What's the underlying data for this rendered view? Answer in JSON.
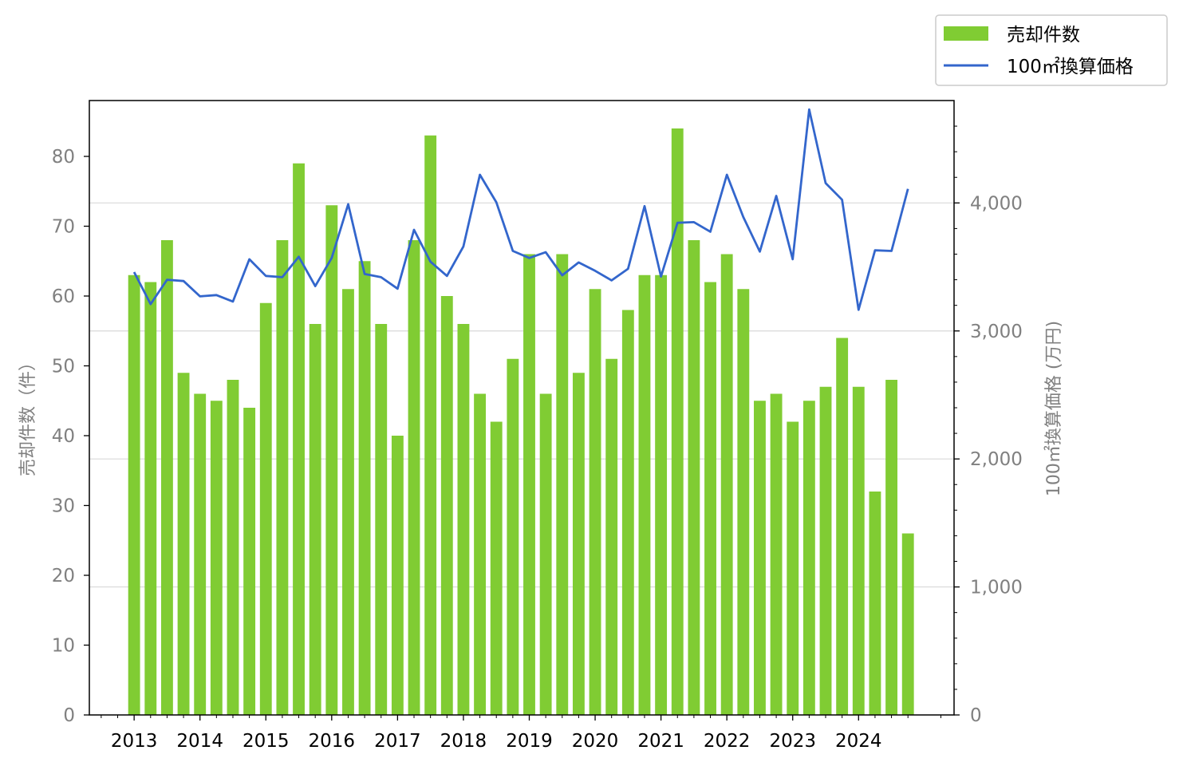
{
  "chart_data": {
    "type": "bar+line",
    "title": "",
    "xlabel": "",
    "ylabel_left": "売却件数（件）",
    "ylabel_right": "100㎡換算価格 (万円)",
    "x_tick_labels": [
      "2013",
      "2014",
      "2015",
      "2016",
      "2017",
      "2018",
      "2019",
      "2020",
      "2021",
      "2022",
      "2023",
      "2024"
    ],
    "xlim": [
      2012.32,
      2025.45
    ],
    "ylim_left": [
      0,
      88
    ],
    "ylim_right": [
      0,
      4800
    ],
    "left_ticks": [
      0,
      10,
      20,
      30,
      40,
      50,
      60,
      70,
      80
    ],
    "right_ticks": [
      0,
      1000,
      2000,
      3000,
      4000
    ],
    "right_tick_labels": [
      "0",
      "1,000",
      "2,000",
      "3,000",
      "4,000"
    ],
    "grid": "horizontal, right axis",
    "legend_placement": "top-right outside",
    "colors": {
      "bar": "#80cc33",
      "line": "#3366cc",
      "axis_text": "#808080"
    },
    "series": [
      {
        "name": "売却件数",
        "type": "bar",
        "axis": "left",
        "values": [
          63,
          62,
          68,
          49,
          46,
          45,
          48,
          44,
          59,
          68,
          79,
          56,
          73,
          61,
          65,
          56,
          40,
          68,
          83,
          60,
          56,
          46,
          42,
          51,
          66,
          46,
          66,
          49,
          61,
          51,
          58,
          63,
          63,
          84,
          68,
          62,
          66,
          61,
          45,
          46,
          42,
          45,
          47,
          54,
          47,
          32,
          48,
          26
        ]
      },
      {
        "name": "100㎡換算価格",
        "type": "line",
        "axis": "right",
        "values": [
          3460,
          3210,
          3400,
          3390,
          3270,
          3280,
          3230,
          3560,
          3430,
          3420,
          3580,
          3350,
          3570,
          3990,
          3445,
          3420,
          3330,
          3790,
          3540,
          3430,
          3660,
          4220,
          4005,
          3625,
          3570,
          3615,
          3435,
          3535,
          3470,
          3395,
          3485,
          3975,
          3425,
          3845,
          3850,
          3775,
          4220,
          3890,
          3620,
          4055,
          3560,
          4730,
          4155,
          4025,
          3165,
          3630,
          3625,
          4110
        ]
      }
    ],
    "x_start_year": 2013,
    "periods_per_year": 4
  }
}
